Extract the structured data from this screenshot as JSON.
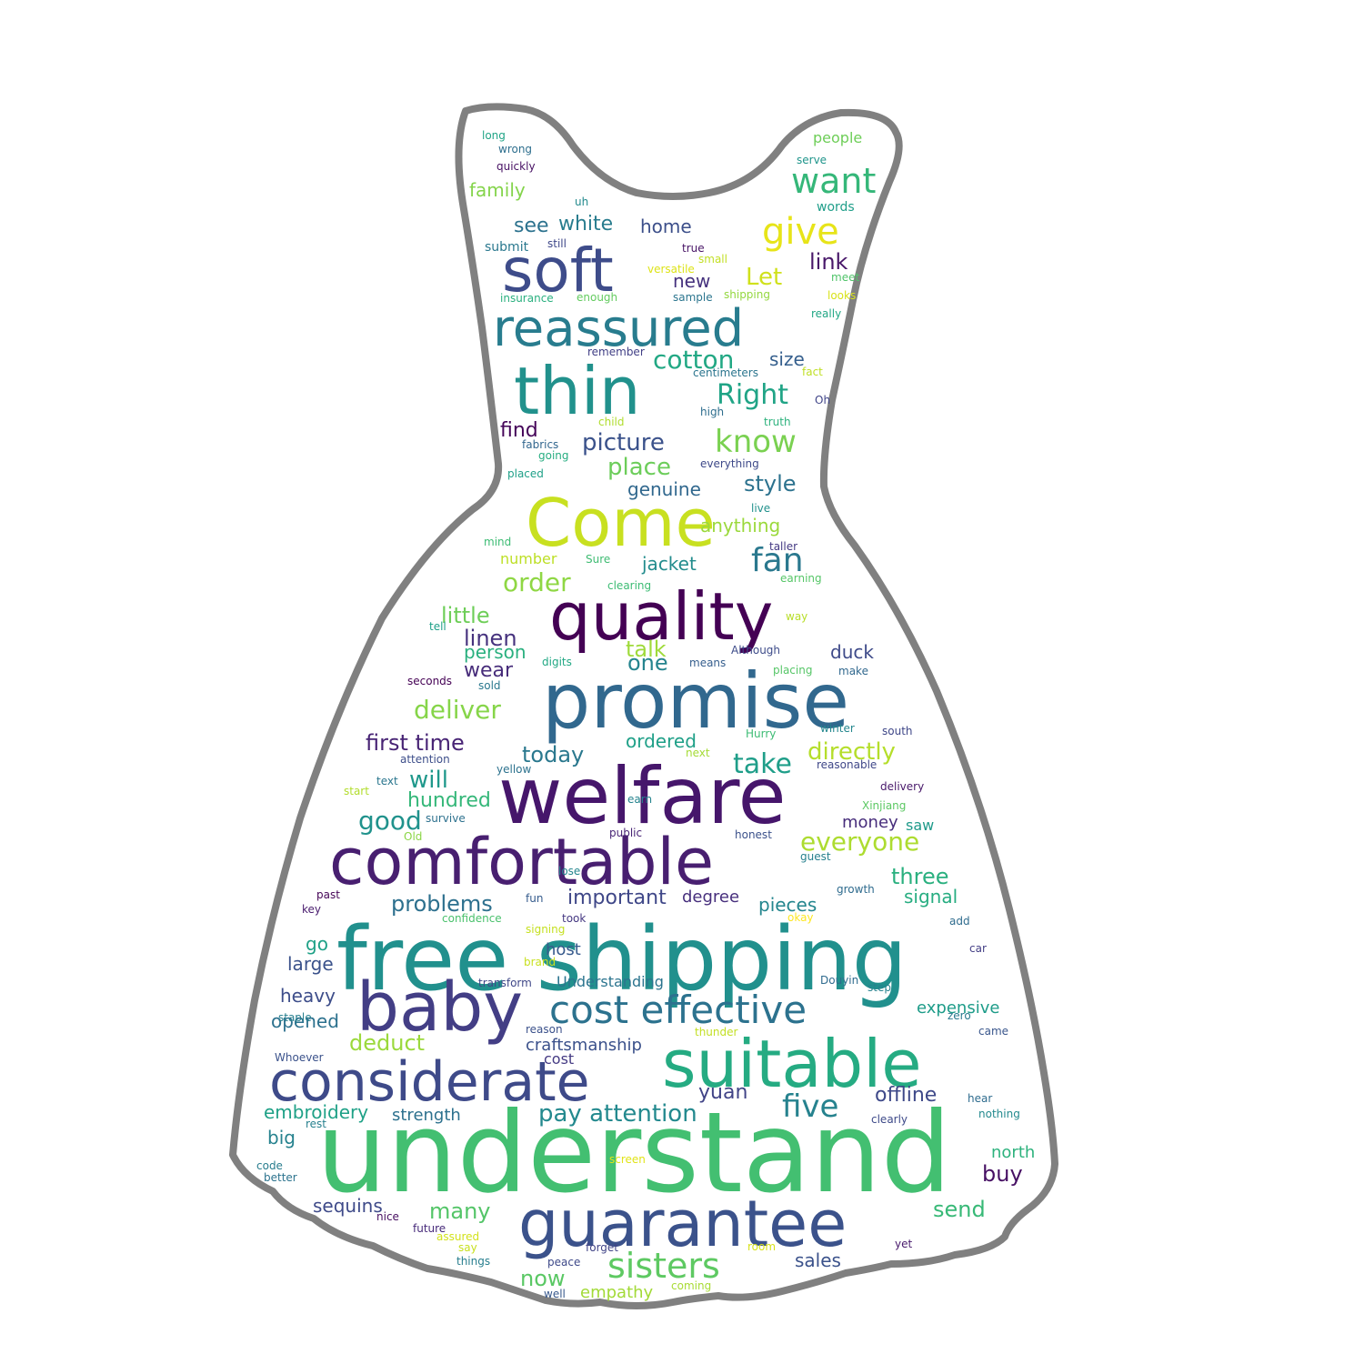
{
  "words": [
    {
      "text": "understand",
      "color": "#43bf71"
    },
    {
      "text": "free shipping",
      "color": "#21908d"
    },
    {
      "text": "welfare",
      "color": "#46166b"
    },
    {
      "text": "promise",
      "color": "#31688e"
    },
    {
      "text": "quality",
      "color": "#440154"
    },
    {
      "text": "comfortable",
      "color": "#481f70"
    },
    {
      "text": "guarantee",
      "color": "#3b528b"
    },
    {
      "text": "suitable",
      "color": "#25ab82"
    },
    {
      "text": "baby",
      "color": "#433e85"
    },
    {
      "text": "considerate",
      "color": "#3e4a89"
    },
    {
      "text": "Come",
      "color": "#c8e020"
    },
    {
      "text": "thin",
      "color": "#21918c"
    },
    {
      "text": "soft",
      "color": "#3e4c8a"
    },
    {
      "text": "reassured",
      "color": "#287c8e"
    },
    {
      "text": "cost effective",
      "color": "#2c728e"
    },
    {
      "text": "sisters",
      "color": "#5ec962"
    },
    {
      "text": "want",
      "color": "#35b779"
    },
    {
      "text": "give",
      "color": "#e7e419"
    },
    {
      "text": "know",
      "color": "#7ad151"
    },
    {
      "text": "fan",
      "color": "#2a788e"
    },
    {
      "text": "five",
      "color": "#26828e"
    },
    {
      "text": "Right",
      "color": "#20a486"
    },
    {
      "text": "cotton",
      "color": "#22a884"
    },
    {
      "text": "picture",
      "color": "#3b528b"
    },
    {
      "text": "place",
      "color": "#6ccd5a"
    },
    {
      "text": "order",
      "color": "#8fd744"
    },
    {
      "text": "little",
      "color": "#6ece58"
    },
    {
      "text": "linen",
      "color": "#46327e"
    },
    {
      "text": "talk",
      "color": "#9fda3a"
    },
    {
      "text": "deliver",
      "color": "#86d549"
    },
    {
      "text": "take",
      "color": "#1f9e89"
    },
    {
      "text": "today",
      "color": "#2a788e"
    },
    {
      "text": "first time",
      "color": "#482475"
    },
    {
      "text": "directly",
      "color": "#b5de2b"
    },
    {
      "text": "will",
      "color": "#1f988b"
    },
    {
      "text": "good",
      "color": "#20928c"
    },
    {
      "text": "hundred",
      "color": "#35b779"
    },
    {
      "text": "everyone",
      "color": "#addc30"
    },
    {
      "text": "problems",
      "color": "#2d708e"
    },
    {
      "text": "important",
      "color": "#3f4788"
    },
    {
      "text": "three",
      "color": "#2ab07f"
    },
    {
      "text": "signal",
      "color": "#27ad81"
    },
    {
      "text": "pieces",
      "color": "#24868e"
    },
    {
      "text": "embroidery",
      "color": "#1fa187"
    },
    {
      "text": "pay attention",
      "color": "#23898e"
    },
    {
      "text": "offline",
      "color": "#3e4989"
    },
    {
      "text": "yuan",
      "color": "#414487"
    },
    {
      "text": "deduct",
      "color": "#9bd93c"
    },
    {
      "text": "craftsmanship",
      "color": "#3b518b"
    },
    {
      "text": "opened",
      "color": "#2c718e"
    },
    {
      "text": "heavy",
      "color": "#3d4d8a"
    },
    {
      "text": "many",
      "color": "#54c568"
    },
    {
      "text": "now",
      "color": "#5ac864"
    },
    {
      "text": "sales",
      "color": "#3b528b"
    },
    {
      "text": "send",
      "color": "#38b977"
    },
    {
      "text": "buy",
      "color": "#471164"
    },
    {
      "text": "north",
      "color": "#2db27d"
    },
    {
      "text": "sequins",
      "color": "#3e4a89"
    },
    {
      "text": "big",
      "color": "#26828e"
    },
    {
      "text": "strength",
      "color": "#2d718e"
    },
    {
      "text": "empathy",
      "color": "#a2da37"
    },
    {
      "text": "style",
      "color": "#2c728e"
    },
    {
      "text": "genuine",
      "color": "#31688e"
    },
    {
      "text": "anything",
      "color": "#9bd93c"
    },
    {
      "text": "jacket",
      "color": "#228c8d"
    },
    {
      "text": "number",
      "color": "#bddf26"
    },
    {
      "text": "person",
      "color": "#2ab07f"
    },
    {
      "text": "wear",
      "color": "#472c7a"
    },
    {
      "text": "one",
      "color": "#25848e"
    },
    {
      "text": "duck",
      "color": "#3e4a89"
    },
    {
      "text": "ordered",
      "color": "#1fa088"
    },
    {
      "text": "money",
      "color": "#472d7b"
    },
    {
      "text": "saw",
      "color": "#1f9a8a"
    },
    {
      "text": "degree",
      "color": "#472f7d"
    },
    {
      "text": "host",
      "color": "#375a8c"
    },
    {
      "text": "go",
      "color": "#1fa187"
    },
    {
      "text": "large",
      "color": "#3b528b"
    },
    {
      "text": "expensive",
      "color": "#1e9c89"
    },
    {
      "text": "Understanding",
      "color": "#2b748e"
    },
    {
      "text": "cost",
      "color": "#443a83"
    },
    {
      "text": "find",
      "color": "#450559"
    },
    {
      "text": "see",
      "color": "#2c728e"
    },
    {
      "text": "white",
      "color": "#287c8e"
    },
    {
      "text": "home",
      "color": "#3c4f8a"
    },
    {
      "text": "Let",
      "color": "#d0e11c"
    },
    {
      "text": "link",
      "color": "#481769"
    },
    {
      "text": "new",
      "color": "#46327e"
    },
    {
      "text": "size",
      "color": "#355f8d"
    },
    {
      "text": "family",
      "color": "#84d44b"
    },
    {
      "text": "submit",
      "color": "#2a788e"
    },
    {
      "text": "people",
      "color": "#6ece58"
    },
    {
      "text": "long",
      "color": "#20a486"
    },
    {
      "text": "wrong",
      "color": "#2e6f8e"
    },
    {
      "text": "quickly",
      "color": "#471063"
    },
    {
      "text": "serve",
      "color": "#1f958b"
    },
    {
      "text": "words",
      "color": "#1f9e89"
    },
    {
      "text": "uh",
      "color": "#238a8d"
    },
    {
      "text": "still",
      "color": "#3f4889"
    },
    {
      "text": "true",
      "color": "#471365"
    },
    {
      "text": "small",
      "color": "#c2df23"
    },
    {
      "text": "versatile",
      "color": "#dde318"
    },
    {
      "text": "sample",
      "color": "#2b758e"
    },
    {
      "text": "shipping",
      "color": "#95d840"
    },
    {
      "text": "meet",
      "color": "#50c46a"
    },
    {
      "text": "looks",
      "color": "#d8e219"
    },
    {
      "text": "really",
      "color": "#22a785"
    },
    {
      "text": "insurance",
      "color": "#2ab07f"
    },
    {
      "text": "enough",
      "color": "#63cb5f"
    },
    {
      "text": "remember",
      "color": "#424086"
    },
    {
      "text": "centimeters",
      "color": "#2b758e"
    },
    {
      "text": "fact",
      "color": "#c0df25"
    },
    {
      "text": "Oh",
      "color": "#404588"
    },
    {
      "text": "child",
      "color": "#b0dd2f"
    },
    {
      "text": "high",
      "color": "#2e6e8e"
    },
    {
      "text": "truth",
      "color": "#2db27d"
    },
    {
      "text": "fabrics",
      "color": "#31668e"
    },
    {
      "text": "going",
      "color": "#26ad81"
    },
    {
      "text": "placed",
      "color": "#1fa088"
    },
    {
      "text": "everything",
      "color": "#3e4989"
    },
    {
      "text": "live",
      "color": "#21918c"
    },
    {
      "text": "mind",
      "color": "#3dbc74"
    },
    {
      "text": "Sure",
      "color": "#3fbc73"
    },
    {
      "text": "taller",
      "color": "#443983"
    },
    {
      "text": "clearing",
      "color": "#3dbc74"
    },
    {
      "text": "earning",
      "color": "#56c667"
    },
    {
      "text": "way",
      "color": "#b8de29"
    },
    {
      "text": "tell",
      "color": "#1fa088"
    },
    {
      "text": "digits",
      "color": "#22a884"
    },
    {
      "text": "means",
      "color": "#355e8d"
    },
    {
      "text": "Although",
      "color": "#3e4c8a"
    },
    {
      "text": "seconds",
      "color": "#440154"
    },
    {
      "text": "sold",
      "color": "#2a788e"
    },
    {
      "text": "placing",
      "color": "#56c667"
    },
    {
      "text": "make",
      "color": "#31688e"
    },
    {
      "text": "Hurry",
      "color": "#3dbc74"
    },
    {
      "text": "winter",
      "color": "#24878e"
    },
    {
      "text": "south",
      "color": "#3f4788"
    },
    {
      "text": "next",
      "color": "#a5db36"
    },
    {
      "text": "attention",
      "color": "#3d4e8a"
    },
    {
      "text": "yellow",
      "color": "#2c728e"
    },
    {
      "text": "reasonable",
      "color": "#3f4788"
    },
    {
      "text": "text",
      "color": "#2a768e"
    },
    {
      "text": "start",
      "color": "#b2dd2d"
    },
    {
      "text": "delivery",
      "color": "#48186a"
    },
    {
      "text": "earn",
      "color": "#25838e"
    },
    {
      "text": "survive",
      "color": "#2d718e"
    },
    {
      "text": "Xinjiang",
      "color": "#5cc863"
    },
    {
      "text": "Old",
      "color": "#8bd646"
    },
    {
      "text": "public",
      "color": "#482475"
    },
    {
      "text": "honest",
      "color": "#3b518b"
    },
    {
      "text": "guest",
      "color": "#27808e"
    },
    {
      "text": "lose",
      "color": "#24868e"
    },
    {
      "text": "past",
      "color": "#450457"
    },
    {
      "text": "key",
      "color": "#481b6d"
    },
    {
      "text": "fun",
      "color": "#365c8d"
    },
    {
      "text": "growth",
      "color": "#2f6b8e"
    },
    {
      "text": "confidence",
      "color": "#4ac16d"
    },
    {
      "text": "took",
      "color": "#453882"
    },
    {
      "text": "okay",
      "color": "#fde725"
    },
    {
      "text": "signing",
      "color": "#c5e021"
    },
    {
      "text": "add",
      "color": "#2f6c8e"
    },
    {
      "text": "car",
      "color": "#433e85"
    },
    {
      "text": "brand",
      "color": "#c8e020"
    },
    {
      "text": "transform",
      "color": "#3f4788"
    },
    {
      "text": "Douyin",
      "color": "#2f6b8e"
    },
    {
      "text": "step",
      "color": "#26828e"
    },
    {
      "text": "zero",
      "color": "#29798e"
    },
    {
      "text": "came",
      "color": "#39568c"
    },
    {
      "text": "staple",
      "color": "#277f8e"
    },
    {
      "text": "reason",
      "color": "#3b518b"
    },
    {
      "text": "thunder",
      "color": "#c2df23"
    },
    {
      "text": "Whoever",
      "color": "#3b528b"
    },
    {
      "text": "hear",
      "color": "#2f6c8e"
    },
    {
      "text": "nothing",
      "color": "#23898e"
    },
    {
      "text": "rest",
      "color": "#27808e"
    },
    {
      "text": "clearly",
      "color": "#3e4a89"
    },
    {
      "text": "code",
      "color": "#287d8e"
    },
    {
      "text": "better",
      "color": "#2c738e"
    },
    {
      "text": "screen",
      "color": "#e1e418"
    },
    {
      "text": "nice",
      "color": "#470e61"
    },
    {
      "text": "future",
      "color": "#472a7a"
    },
    {
      "text": "assured",
      "color": "#d2e21b"
    },
    {
      "text": "say",
      "color": "#c8e020"
    },
    {
      "text": "things",
      "color": "#277e8e"
    },
    {
      "text": "forget",
      "color": "#414487"
    },
    {
      "text": "room",
      "color": "#d8e219"
    },
    {
      "text": "peace",
      "color": "#3e4989"
    },
    {
      "text": "coming",
      "color": "#a8db34"
    },
    {
      "text": "well",
      "color": "#38588c"
    },
    {
      "text": "yet",
      "color": "#481a6c"
    }
  ]
}
